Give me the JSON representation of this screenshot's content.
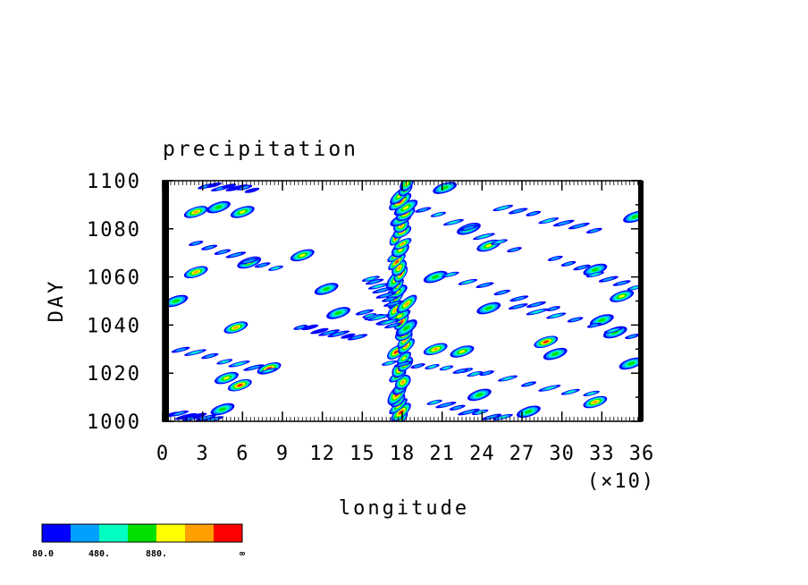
{
  "chart_data": {
    "type": "heatmap",
    "title": "precipitation",
    "xlabel": "longitude",
    "ylabel": "DAY",
    "x_scale_label": "(×10)",
    "xlim": [
      0,
      36
    ],
    "ylim": [
      1000,
      1100
    ],
    "x_ticks": [
      "0",
      "3",
      "6",
      "9",
      "12",
      "15",
      "18",
      "21",
      "24",
      "27",
      "30",
      "33",
      "36"
    ],
    "y_ticks": [
      "1000",
      "1020",
      "1040",
      "1060",
      "1080",
      "1100"
    ],
    "colorbar": {
      "colors": [
        "#0000ff",
        "#00a0ff",
        "#00ffc0",
        "#00e000",
        "#ffff00",
        "#ffa000",
        "#ff0000"
      ],
      "labels": [
        "80.0",
        "480.",
        "880.",
        "∞"
      ]
    },
    "features": [
      {
        "kind": "band",
        "x_start": 17.6,
        "x_end": 18.2,
        "y_start": 1000,
        "y_end": 1100,
        "intensity": 6
      },
      {
        "kind": "blob",
        "x": 2.5,
        "y": 1087,
        "intensity": 5
      },
      {
        "kind": "blob",
        "x": 4.2,
        "y": 1089,
        "intensity": 3
      },
      {
        "kind": "blob",
        "x": 6.0,
        "y": 1087,
        "intensity": 4
      },
      {
        "kind": "blob",
        "x": 2.5,
        "y": 1062,
        "intensity": 5
      },
      {
        "kind": "blob",
        "x": 6.5,
        "y": 1066,
        "intensity": 4
      },
      {
        "kind": "blob",
        "x": 10.5,
        "y": 1069,
        "intensity": 4
      },
      {
        "kind": "blob",
        "x": 12.3,
        "y": 1055,
        "intensity": 3
      },
      {
        "kind": "blob",
        "x": 13.2,
        "y": 1045,
        "intensity": 3
      },
      {
        "kind": "blob",
        "x": 5.5,
        "y": 1039,
        "intensity": 5
      },
      {
        "kind": "blob",
        "x": 4.8,
        "y": 1018,
        "intensity": 4
      },
      {
        "kind": "blob",
        "x": 5.8,
        "y": 1015,
        "intensity": 6
      },
      {
        "kind": "blob",
        "x": 8.0,
        "y": 1022,
        "intensity": 6
      },
      {
        "kind": "blob",
        "x": 4.5,
        "y": 1005,
        "intensity": 3
      },
      {
        "kind": "blob",
        "x": 20.5,
        "y": 1030,
        "intensity": 5
      },
      {
        "kind": "blob",
        "x": 22.5,
        "y": 1029,
        "intensity": 4
      },
      {
        "kind": "blob",
        "x": 23.0,
        "y": 1080,
        "intensity": 3
      },
      {
        "kind": "blob",
        "x": 24.5,
        "y": 1073,
        "intensity": 4
      },
      {
        "kind": "blob",
        "x": 20.5,
        "y": 1060,
        "intensity": 3
      },
      {
        "kind": "blob",
        "x": 24.5,
        "y": 1047,
        "intensity": 3
      },
      {
        "kind": "blob",
        "x": 28.8,
        "y": 1033,
        "intensity": 6
      },
      {
        "kind": "blob",
        "x": 29.5,
        "y": 1028,
        "intensity": 3
      },
      {
        "kind": "blob",
        "x": 32.5,
        "y": 1063,
        "intensity": 3
      },
      {
        "kind": "blob",
        "x": 34.5,
        "y": 1052,
        "intensity": 4
      },
      {
        "kind": "blob",
        "x": 33.0,
        "y": 1042,
        "intensity": 3
      },
      {
        "kind": "blob",
        "x": 32.5,
        "y": 1008,
        "intensity": 5
      },
      {
        "kind": "blob",
        "x": 34.0,
        "y": 1037,
        "intensity": 3
      },
      {
        "kind": "blob",
        "x": 21.2,
        "y": 1097,
        "intensity": 3
      },
      {
        "kind": "blob",
        "x": 23.8,
        "y": 1011,
        "intensity": 3
      },
      {
        "kind": "blob",
        "x": 27.5,
        "y": 1004,
        "intensity": 3
      },
      {
        "kind": "blob",
        "x": 1.0,
        "y": 1050,
        "intensity": 3
      },
      {
        "kind": "blob",
        "x": 35.5,
        "y": 1085,
        "intensity": 3
      },
      {
        "kind": "blob",
        "x": 35.2,
        "y": 1024,
        "intensity": 3
      },
      {
        "kind": "streak",
        "x1": 0.8,
        "y1": 1030,
        "x2": 8.5,
        "y2": 1020,
        "intensity": 2
      },
      {
        "kind": "streak",
        "x1": 2.0,
        "y1": 1075,
        "x2": 9.0,
        "y2": 1062,
        "intensity": 2
      },
      {
        "kind": "streak",
        "x1": 10.0,
        "y1": 1040,
        "x2": 15.0,
        "y2": 1034,
        "intensity": 1
      },
      {
        "kind": "streak",
        "x1": 19.0,
        "y1": 1090,
        "x2": 27.0,
        "y2": 1070,
        "intensity": 2
      },
      {
        "kind": "streak",
        "x1": 25.0,
        "y1": 1090,
        "x2": 33.0,
        "y2": 1078,
        "intensity": 2
      },
      {
        "kind": "streak",
        "x1": 21.0,
        "y1": 1062,
        "x2": 30.0,
        "y2": 1045,
        "intensity": 2
      },
      {
        "kind": "streak",
        "x1": 22.0,
        "y1": 1022,
        "x2": 33.0,
        "y2": 1010,
        "intensity": 2
      },
      {
        "kind": "streak",
        "x1": 26.0,
        "y1": 1048,
        "x2": 36.0,
        "y2": 1035,
        "intensity": 2
      },
      {
        "kind": "streak",
        "x1": 29.0,
        "y1": 1068,
        "x2": 36.0,
        "y2": 1055,
        "intensity": 2
      },
      {
        "kind": "streak",
        "x1": 15.5,
        "y1": 1060,
        "x2": 17.5,
        "y2": 1048,
        "intensity": 2
      },
      {
        "kind": "streak",
        "x1": 15.0,
        "y1": 1045,
        "x2": 17.5,
        "y2": 1040,
        "intensity": 2
      },
      {
        "kind": "streak",
        "x1": 16.5,
        "y1": 1025,
        "x2": 24.0,
        "y2": 1020,
        "intensity": 2
      },
      {
        "kind": "streak",
        "x1": 3.0,
        "y1": 1098,
        "x2": 7.0,
        "y2": 1096,
        "intensity": 1
      },
      {
        "kind": "streak",
        "x1": 0.5,
        "y1": 1003,
        "x2": 4.0,
        "y2": 1001,
        "intensity": 1
      },
      {
        "kind": "streak",
        "x1": 20.0,
        "y1": 1008,
        "x2": 26.0,
        "y2": 1001,
        "intensity": 2
      }
    ]
  }
}
